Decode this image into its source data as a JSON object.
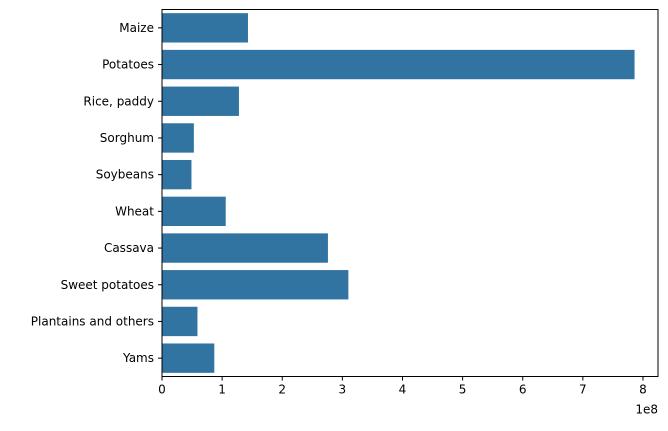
{
  "chart_data": {
    "type": "bar",
    "orientation": "horizontal",
    "categories": [
      "Maize",
      "Potatoes",
      "Rice, paddy",
      "Sorghum",
      "Soybeans",
      "Wheat",
      "Cassava",
      "Sweet potatoes",
      "Plantains and others",
      "Yams"
    ],
    "values": [
      143000000,
      786000000,
      128000000,
      53000000,
      49000000,
      106000000,
      276000000,
      310000000,
      59000000,
      87000000
    ],
    "title": "",
    "xlabel": "",
    "ylabel": "",
    "xlim": [
      0,
      825000000
    ],
    "x_ticks": [
      0,
      100000000,
      200000000,
      300000000,
      400000000,
      500000000,
      600000000,
      700000000,
      800000000
    ],
    "x_tick_labels": [
      "0",
      "1",
      "2",
      "3",
      "4",
      "5",
      "6",
      "7",
      "8"
    ],
    "x_offset_label": "1e8",
    "bar_color": "#3274a1",
    "grid": false,
    "legend": "none"
  }
}
